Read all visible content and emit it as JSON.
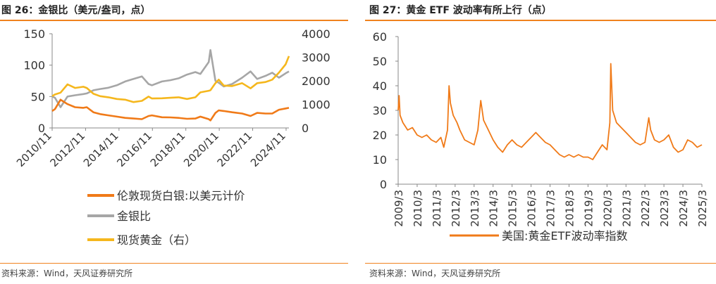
{
  "left": {
    "title": "图 26：金银比（美元/盎司，点）",
    "source": "资料来源：Wind，天风证券研究所",
    "chart_data": {
      "type": "line",
      "x_ticks": [
        "2010/11",
        "2012/11",
        "2014/11",
        "2016/11",
        "2018/11",
        "2020/11",
        "2022/11",
        "2024/11"
      ],
      "x_range_years": [
        2010.83,
        2025.0
      ],
      "y_left": {
        "ticks": [
          "0",
          "50",
          "100",
          "150"
        ],
        "range": [
          0,
          150
        ]
      },
      "y_right": {
        "ticks": [
          "0",
          "1000",
          "2000",
          "3000",
          "4000"
        ],
        "range": [
          0,
          4000
        ]
      },
      "series": [
        {
          "name": "伦敦现货白银:以美元计价",
          "axis": "left",
          "color": "#f07a18",
          "points": [
            [
              2010.83,
              27
            ],
            [
              2011.0,
              30
            ],
            [
              2011.33,
              45
            ],
            [
              2011.75,
              38
            ],
            [
              2012.2,
              33
            ],
            [
              2012.7,
              32
            ],
            [
              2012.9,
              33
            ],
            [
              2013.3,
              25
            ],
            [
              2013.7,
              22
            ],
            [
              2014.2,
              20
            ],
            [
              2014.7,
              18
            ],
            [
              2015.2,
              16
            ],
            [
              2015.7,
              15
            ],
            [
              2016.2,
              14
            ],
            [
              2016.6,
              19
            ],
            [
              2016.8,
              20
            ],
            [
              2017.4,
              17
            ],
            [
              2017.9,
              16.8
            ],
            [
              2018.4,
              16
            ],
            [
              2018.9,
              14.5
            ],
            [
              2019.4,
              15
            ],
            [
              2019.7,
              18
            ],
            [
              2020.2,
              14
            ],
            [
              2020.3,
              12
            ],
            [
              2020.6,
              24
            ],
            [
              2020.8,
              28
            ],
            [
              2021.1,
              27
            ],
            [
              2021.6,
              25
            ],
            [
              2022.2,
              23
            ],
            [
              2022.7,
              19
            ],
            [
              2023.1,
              24
            ],
            [
              2023.6,
              23
            ],
            [
              2024.0,
              23
            ],
            [
              2024.4,
              29
            ],
            [
              2024.8,
              31
            ],
            [
              2025.0,
              32
            ]
          ]
        },
        {
          "name": "金银比",
          "axis": "left",
          "color": "#a6a6a6",
          "points": [
            [
              2010.83,
              50
            ],
            [
              2011.0,
              48
            ],
            [
              2011.33,
              33
            ],
            [
              2011.75,
              50
            ],
            [
              2012.2,
              52
            ],
            [
              2012.7,
              54
            ],
            [
              2012.9,
              55
            ],
            [
              2013.3,
              60
            ],
            [
              2013.7,
              62
            ],
            [
              2014.2,
              64
            ],
            [
              2014.7,
              68
            ],
            [
              2015.2,
              74
            ],
            [
              2015.7,
              78
            ],
            [
              2016.2,
              82
            ],
            [
              2016.6,
              70
            ],
            [
              2016.8,
              68
            ],
            [
              2017.4,
              74
            ],
            [
              2017.9,
              76
            ],
            [
              2018.4,
              79
            ],
            [
              2018.9,
              85
            ],
            [
              2019.4,
              89
            ],
            [
              2019.7,
              86
            ],
            [
              2020.2,
              105
            ],
            [
              2020.3,
              124
            ],
            [
              2020.6,
              75
            ],
            [
              2020.8,
              72
            ],
            [
              2021.1,
              66
            ],
            [
              2021.6,
              70
            ],
            [
              2022.2,
              80
            ],
            [
              2022.7,
              90
            ],
            [
              2023.1,
              78
            ],
            [
              2023.6,
              83
            ],
            [
              2024.0,
              88
            ],
            [
              2024.4,
              80
            ],
            [
              2024.8,
              87
            ],
            [
              2025.0,
              90
            ]
          ]
        },
        {
          "name": "现货黄金（右）",
          "axis": "right",
          "color": "#f5b71d",
          "points": [
            [
              2010.83,
              1350
            ],
            [
              2011.0,
              1420
            ],
            [
              2011.33,
              1500
            ],
            [
              2011.75,
              1850
            ],
            [
              2012.2,
              1700
            ],
            [
              2012.7,
              1750
            ],
            [
              2012.9,
              1700
            ],
            [
              2013.3,
              1450
            ],
            [
              2013.7,
              1350
            ],
            [
              2014.2,
              1300
            ],
            [
              2014.7,
              1230
            ],
            [
              2015.2,
              1200
            ],
            [
              2015.7,
              1100
            ],
            [
              2016.2,
              1150
            ],
            [
              2016.6,
              1330
            ],
            [
              2016.8,
              1250
            ],
            [
              2017.4,
              1260
            ],
            [
              2017.9,
              1280
            ],
            [
              2018.4,
              1300
            ],
            [
              2018.9,
              1230
            ],
            [
              2019.4,
              1300
            ],
            [
              2019.7,
              1510
            ],
            [
              2020.2,
              1580
            ],
            [
              2020.3,
              1600
            ],
            [
              2020.6,
              1900
            ],
            [
              2020.8,
              2050
            ],
            [
              2021.1,
              1800
            ],
            [
              2021.6,
              1780
            ],
            [
              2022.2,
              1900
            ],
            [
              2022.7,
              1680
            ],
            [
              2023.1,
              1900
            ],
            [
              2023.6,
              1950
            ],
            [
              2024.0,
              2050
            ],
            [
              2024.4,
              2350
            ],
            [
              2024.8,
              2700
            ],
            [
              2025.0,
              3050
            ]
          ]
        }
      ]
    }
  },
  "right": {
    "title": "图 27：黄金 ETF 波动率有所上行（点）",
    "source": "资料来源：Wind，天风证券研究所",
    "chart_data": {
      "type": "line",
      "x_ticks": [
        "2009/3",
        "2010/3",
        "2011/3",
        "2012/3",
        "2013/3",
        "2014/3",
        "2015/3",
        "2016/3",
        "2017/3",
        "2018/3",
        "2019/3",
        "2020/3",
        "2021/3",
        "2022/3",
        "2023/3",
        "2024/3",
        "2025/3"
      ],
      "x_range_years": [
        2009.0,
        2025.0
      ],
      "y_left": {
        "ticks": [
          "0",
          "10",
          "20",
          "30",
          "40",
          "50",
          "60"
        ],
        "range": [
          0,
          60
        ]
      },
      "series": [
        {
          "name": "美国:黄金ETF波动率指数",
          "axis": "left",
          "color": "#f07a18",
          "points": [
            [
              2009.0,
              30
            ],
            [
              2009.05,
              36
            ],
            [
              2009.1,
              28
            ],
            [
              2009.25,
              25
            ],
            [
              2009.5,
              22
            ],
            [
              2009.75,
              23
            ],
            [
              2010.0,
              20
            ],
            [
              2010.25,
              19
            ],
            [
              2010.5,
              20
            ],
            [
              2010.75,
              18
            ],
            [
              2011.0,
              17
            ],
            [
              2011.25,
              19
            ],
            [
              2011.4,
              15
            ],
            [
              2011.6,
              22
            ],
            [
              2011.68,
              40
            ],
            [
              2011.75,
              33
            ],
            [
              2011.9,
              28
            ],
            [
              2012.1,
              25
            ],
            [
              2012.25,
              22
            ],
            [
              2012.5,
              18
            ],
            [
              2012.75,
              17
            ],
            [
              2013.0,
              16
            ],
            [
              2013.2,
              22
            ],
            [
              2013.3,
              30
            ],
            [
              2013.35,
              34
            ],
            [
              2013.5,
              26
            ],
            [
              2013.75,
              22
            ],
            [
              2014.0,
              18
            ],
            [
              2014.25,
              15
            ],
            [
              2014.5,
              13
            ],
            [
              2014.75,
              16
            ],
            [
              2015.0,
              18
            ],
            [
              2015.25,
              16
            ],
            [
              2015.5,
              15
            ],
            [
              2015.75,
              17
            ],
            [
              2016.0,
              19
            ],
            [
              2016.25,
              21
            ],
            [
              2016.5,
              19
            ],
            [
              2016.75,
              17
            ],
            [
              2017.0,
              16
            ],
            [
              2017.25,
              14
            ],
            [
              2017.5,
              12
            ],
            [
              2017.75,
              11
            ],
            [
              2018.0,
              12
            ],
            [
              2018.25,
              11
            ],
            [
              2018.5,
              12
            ],
            [
              2018.75,
              11
            ],
            [
              2019.0,
              11
            ],
            [
              2019.25,
              10
            ],
            [
              2019.5,
              13
            ],
            [
              2019.75,
              16
            ],
            [
              2020.0,
              14
            ],
            [
              2020.15,
              25
            ],
            [
              2020.2,
              49
            ],
            [
              2020.3,
              30
            ],
            [
              2020.5,
              25
            ],
            [
              2020.75,
              23
            ],
            [
              2021.0,
              21
            ],
            [
              2021.25,
              19
            ],
            [
              2021.5,
              17
            ],
            [
              2021.75,
              16
            ],
            [
              2022.0,
              17
            ],
            [
              2022.2,
              27
            ],
            [
              2022.3,
              22
            ],
            [
              2022.5,
              18
            ],
            [
              2022.75,
              17
            ],
            [
              2023.0,
              18
            ],
            [
              2023.25,
              20
            ],
            [
              2023.5,
              15
            ],
            [
              2023.75,
              13
            ],
            [
              2024.0,
              14
            ],
            [
              2024.25,
              18
            ],
            [
              2024.5,
              17
            ],
            [
              2024.75,
              15
            ],
            [
              2025.0,
              16
            ]
          ]
        }
      ]
    }
  }
}
